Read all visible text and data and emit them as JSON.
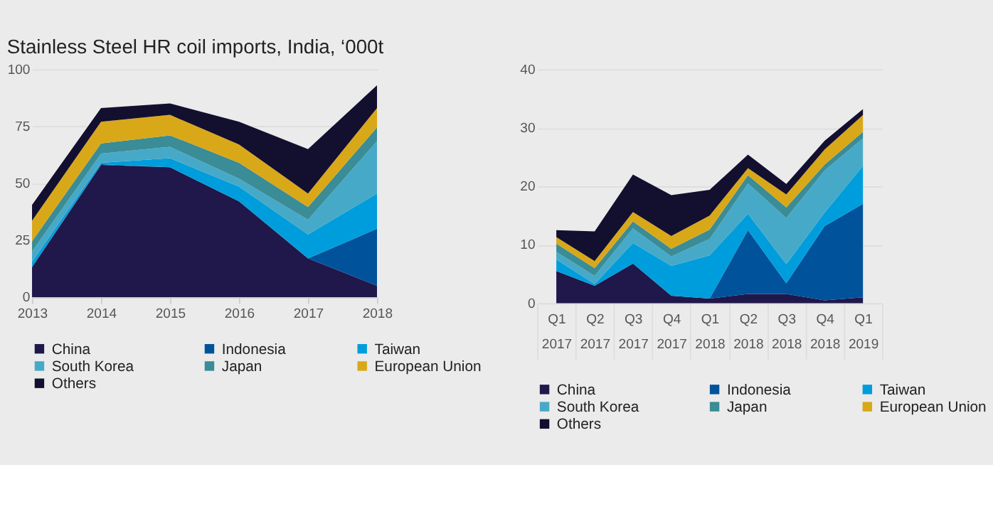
{
  "chart_data": [
    {
      "type": "area",
      "stacked": true,
      "title": "Stainless Steel HR coil imports, India, ‘000t",
      "x": [
        2013,
        2014,
        2015,
        2016,
        2017,
        2018
      ],
      "xlim": [
        2013,
        2018
      ],
      "xticks": [
        2013,
        2014,
        2015,
        2016,
        2017,
        2018
      ],
      "ylim": [
        0,
        100
      ],
      "yticks": [
        0,
        25,
        50,
        75,
        100
      ],
      "grid": "y",
      "legend": "bottom",
      "series": [
        {
          "name": "China",
          "color": "#20174a",
          "values": [
            13,
            58,
            57,
            42,
            17,
            5
          ]
        },
        {
          "name": "Indonesia",
          "color": "#00529b",
          "values": [
            0.5,
            0.3,
            0,
            0,
            0,
            25
          ]
        },
        {
          "name": "Taiwan",
          "color": "#009ddc",
          "values": [
            2,
            0.7,
            4,
            6.5,
            10.5,
            15.5
          ]
        },
        {
          "name": "South Korea",
          "color": "#47a9c8",
          "values": [
            4.5,
            4,
            5,
            3.5,
            6.5,
            23
          ]
        },
        {
          "name": "Japan",
          "color": "#3a8c96",
          "values": [
            4.5,
            4.5,
            5,
            7,
            5.5,
            6
          ]
        },
        {
          "name": "European Union",
          "color": "#d9a819",
          "values": [
            9,
            9.5,
            9,
            8,
            6,
            8.5
          ]
        },
        {
          "name": "Others",
          "color": "#130f2e",
          "values": [
            7,
            6,
            5,
            10,
            19.5,
            10
          ]
        }
      ]
    },
    {
      "type": "area",
      "stacked": true,
      "categories": [
        "Q1 2017",
        "Q2 2017",
        "Q3 2017",
        "Q4 2017",
        "Q1 2018",
        "Q2 2018",
        "Q3 2018",
        "Q4 2018",
        "Q1 2019"
      ],
      "ylim": [
        0,
        40
      ],
      "yticks": [
        0,
        10,
        20,
        30,
        40
      ],
      "grid": "y",
      "legend": "bottom",
      "series": [
        {
          "name": "China",
          "color": "#20174a",
          "values": [
            5.5,
            3,
            6.8,
            1.3,
            0.8,
            1.6,
            1.6,
            0.5,
            1
          ]
        },
        {
          "name": "Indonesia",
          "color": "#00529b",
          "values": [
            0,
            0,
            0,
            0,
            0,
            10.9,
            1.8,
            12.7,
            16
          ]
        },
        {
          "name": "Taiwan",
          "color": "#009ddc",
          "values": [
            2,
            0.3,
            3.5,
            5.1,
            7.4,
            2.8,
            3.3,
            2.3,
            6.5
          ]
        },
        {
          "name": "South Korea",
          "color": "#47a9c8",
          "values": [
            1.3,
            1.4,
            2.5,
            1.6,
            2.8,
            5.2,
            7.9,
            7.2,
            4.7
          ]
        },
        {
          "name": "Japan",
          "color": "#3a8c96",
          "values": [
            1.4,
            1.3,
            1.2,
            1.3,
            1.6,
            1.4,
            1.8,
            1,
            1.1
          ]
        },
        {
          "name": "European Union",
          "color": "#d9a819",
          "values": [
            1.1,
            1.2,
            1.6,
            2.2,
            2.4,
            1.2,
            2.2,
            2.6,
            2.9
          ]
        },
        {
          "name": "Others",
          "color": "#130f2e",
          "values": [
            1.2,
            5.1,
            6.4,
            7,
            4.4,
            2.3,
            1.8,
            1.5,
            1
          ]
        }
      ]
    }
  ]
}
